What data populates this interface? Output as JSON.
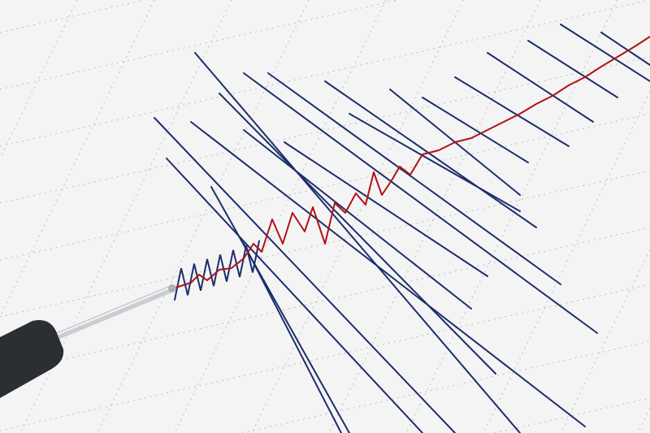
{
  "image": {
    "subject": "seismograph",
    "colors": {
      "paper": "#f4f4f4",
      "grid": "#b9bcc2",
      "trace_blue": "#1c2f6b",
      "trace_red": "#b01217",
      "pen_body": "#2b2e33",
      "pen_rod": "#c9ccd1"
    }
  }
}
